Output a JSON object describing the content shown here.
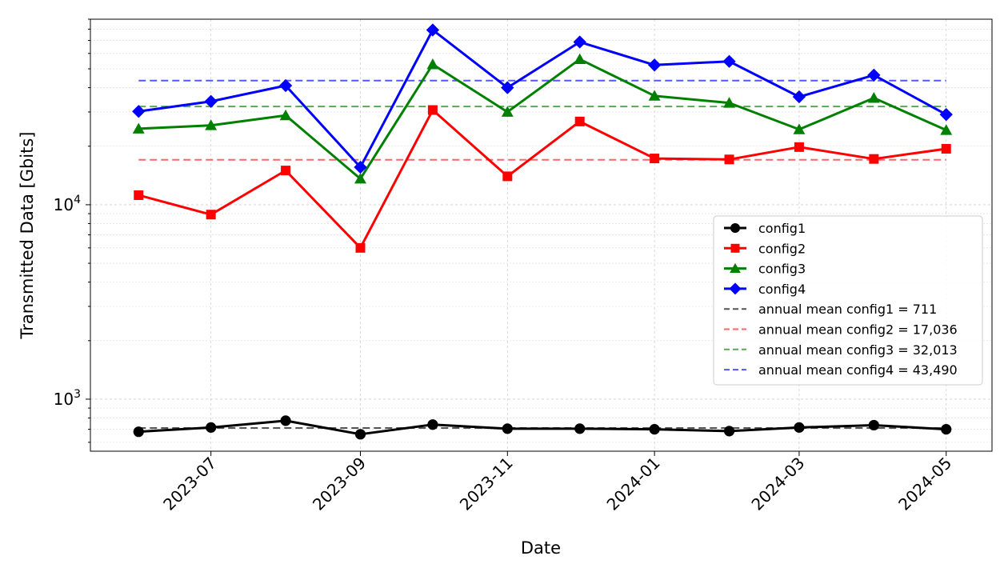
{
  "chart_data": {
    "type": "line",
    "title": "",
    "xlabel": "Date",
    "ylabel": "Transmitted Data [Gbits]",
    "y_scale": "log",
    "ylim": [
      540,
      90000
    ],
    "xlim": [
      "2023-05-12",
      "2024-05-20"
    ],
    "grid": true,
    "legend_position": "right",
    "x_ticks": [
      "2023-07-01",
      "2023-09-01",
      "2023-11-01",
      "2024-01-01",
      "2024-03-01",
      "2024-05-01"
    ],
    "x_tick_labels": [
      "2023-07",
      "2023-09",
      "2023-11",
      "2024-01",
      "2024-03",
      "2024-05"
    ],
    "y_ticks": [
      1000,
      10000
    ],
    "y_tick_labels": [
      {
        "base": "10",
        "exp": "3"
      },
      {
        "base": "10",
        "exp": "4"
      }
    ],
    "x": [
      "2023-06-01",
      "2023-07-01",
      "2023-08-01",
      "2023-09-01",
      "2023-10-01",
      "2023-11-01",
      "2023-12-01",
      "2024-01-01",
      "2024-02-01",
      "2024-03-01",
      "2024-04-01",
      "2024-05-01"
    ],
    "series": [
      {
        "name": "config1",
        "color": "#000000",
        "marker": "circle",
        "values": [
          680,
          715,
          775,
          660,
          740,
          705,
          705,
          700,
          685,
          715,
          735,
          700
        ]
      },
      {
        "name": "config2",
        "color": "#ff0000",
        "marker": "square",
        "values": [
          11200,
          8900,
          15000,
          6000,
          30700,
          14000,
          26800,
          17300,
          17100,
          19800,
          17200,
          19400
        ]
      },
      {
        "name": "config3",
        "color": "#008000",
        "marker": "triangle",
        "values": [
          24600,
          25600,
          28800,
          13600,
          52700,
          30000,
          56000,
          36300,
          33400,
          24400,
          35400,
          24200
        ]
      },
      {
        "name": "config4",
        "color": "#0000ff",
        "marker": "diamond",
        "values": [
          30200,
          34000,
          41000,
          15600,
          79200,
          40000,
          68700,
          52300,
          54600,
          35900,
          46400,
          29100
        ]
      }
    ],
    "reference_lines": [
      {
        "name": "annual mean config1 = 711",
        "color": "#555555",
        "value": 711
      },
      {
        "name": "annual mean config2 = 17,036",
        "color": "#ff6666",
        "value": 17036
      },
      {
        "name": "annual mean config3 = 32,013",
        "color": "#55aa55",
        "value": 32013
      },
      {
        "name": "annual mean config4 = 43,490",
        "color": "#5555ff",
        "value": 43490
      }
    ]
  }
}
